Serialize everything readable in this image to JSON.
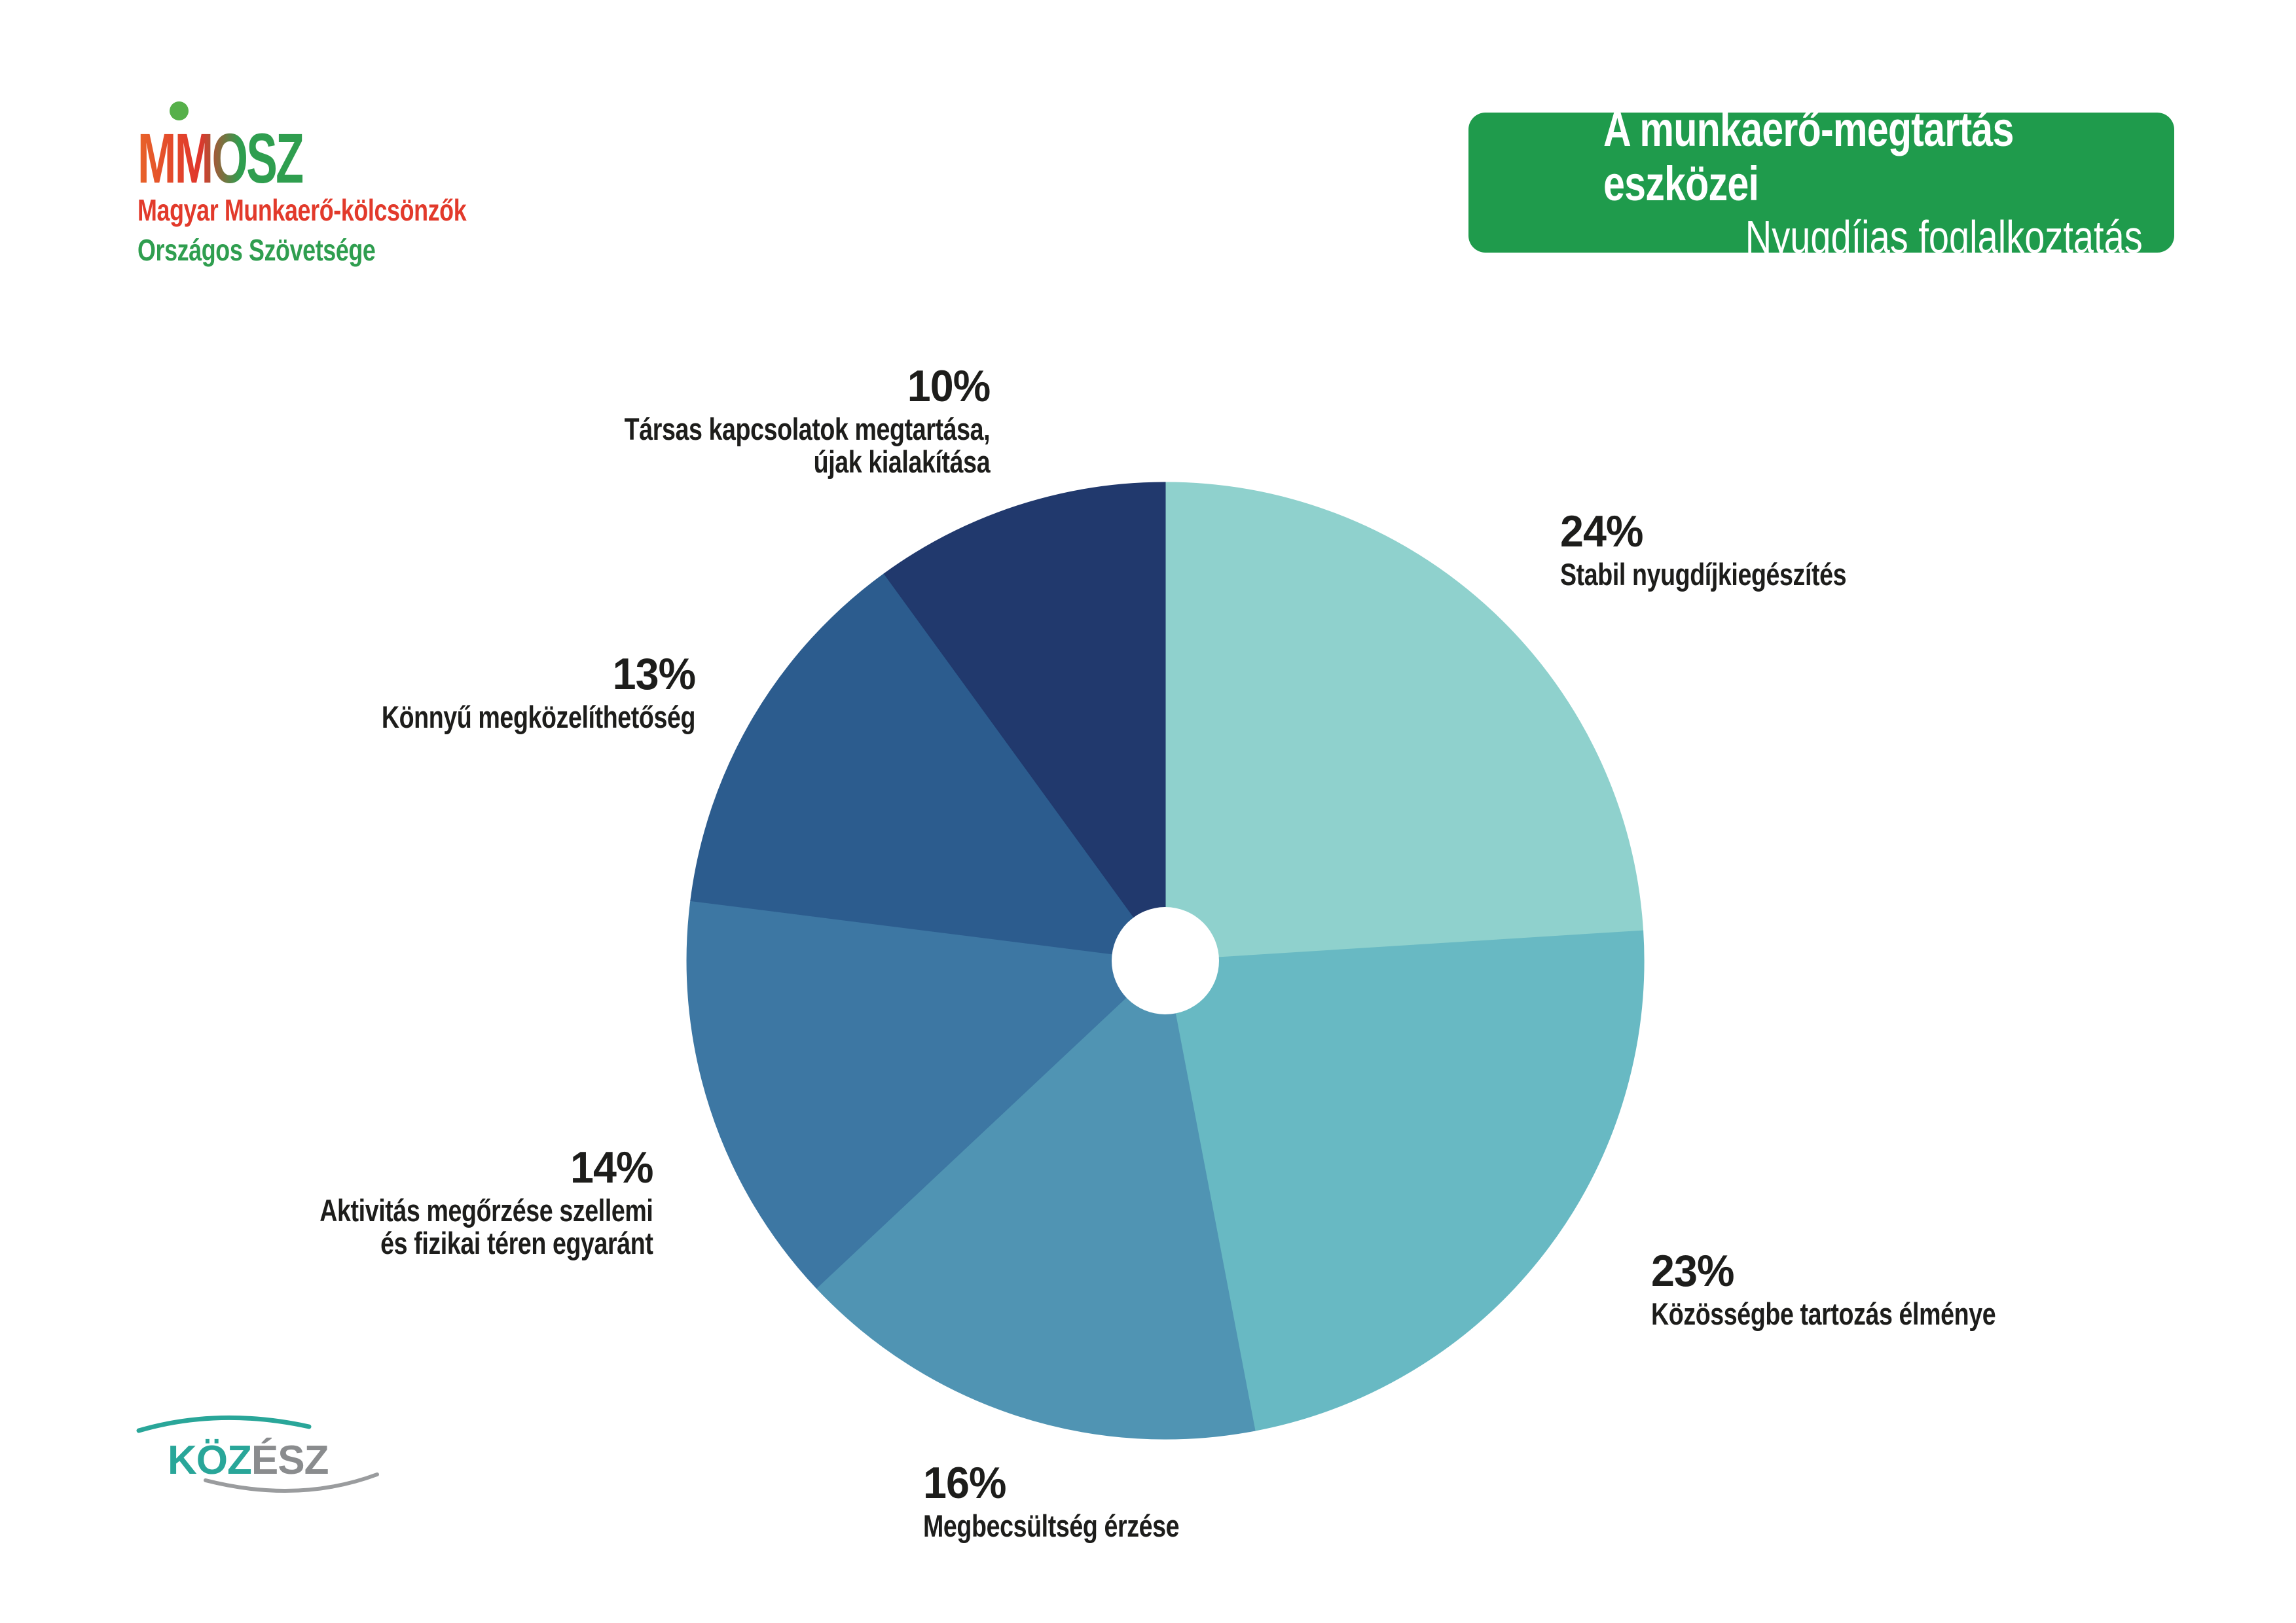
{
  "header": {
    "logo": {
      "acronym": "MMOSZ",
      "line1": "Magyar Munkaerő-kölcsönzők",
      "line2": "Országos Szövetsége",
      "colors": {
        "red": "#e23a2b",
        "green": "#2f9e4f",
        "orange": "#e8642a",
        "dot_green": "#56b04a"
      }
    },
    "badge": {
      "title": "A munkaerő-megtartás eszközei",
      "subtitle": "Nyugdíjas foglalkoztatás",
      "background": "#1f9b4c",
      "text_color": "#ffffff"
    }
  },
  "footer_logo": {
    "part1": "KÖZ",
    "part2": "ÉSZ",
    "teal": "#29a699",
    "gray": "#8a8c8e"
  },
  "chart_data": {
    "type": "pie",
    "title": "A munkaerő-megtartás eszközei",
    "subtitle": "Nyugdíjas foglalkoztatás",
    "donut_hole": true,
    "start_angle_deg": 0,
    "direction": "clockwise",
    "legend_position": "around-slices",
    "segments": [
      {
        "label": "Stabil nyugdíjkiegészítés",
        "value": 24,
        "color": "#8fd1cd"
      },
      {
        "label": "Közösségbe tartozás élménye",
        "value": 23,
        "color": "#68b9c3"
      },
      {
        "label": "Megbecsültség érzése",
        "value": 16,
        "color": "#5094b3"
      },
      {
        "label": "Aktivitás megőrzése szellemi és fizikai téren egyaránt",
        "value": 14,
        "color": "#3d77a3"
      },
      {
        "label": "Könnyű megközelíthetőség",
        "value": 13,
        "color": "#2c5c8e"
      },
      {
        "label": "Társas kapcsolatok megtartása, újak kialakítása",
        "value": 10,
        "color": "#21396d"
      }
    ]
  },
  "labels": {
    "l24": {
      "pct": "24%",
      "line1": "Stabil nyugdíjkiegészítés"
    },
    "l23": {
      "pct": "23%",
      "line1": "Közösségbe tartozás élménye"
    },
    "l16": {
      "pct": "16%",
      "line1": "Megbecsültség érzése"
    },
    "l14": {
      "pct": "14%",
      "line1": "Aktivitás megőrzése szellemi",
      "line2": "és fizikai téren egyaránt"
    },
    "l13": {
      "pct": "13%",
      "line1": "Könnyű megközelíthetőség"
    },
    "l10": {
      "pct": "10%",
      "line1": "Társas kapcsolatok megtartása,",
      "line2": "újak kialakítása"
    }
  }
}
